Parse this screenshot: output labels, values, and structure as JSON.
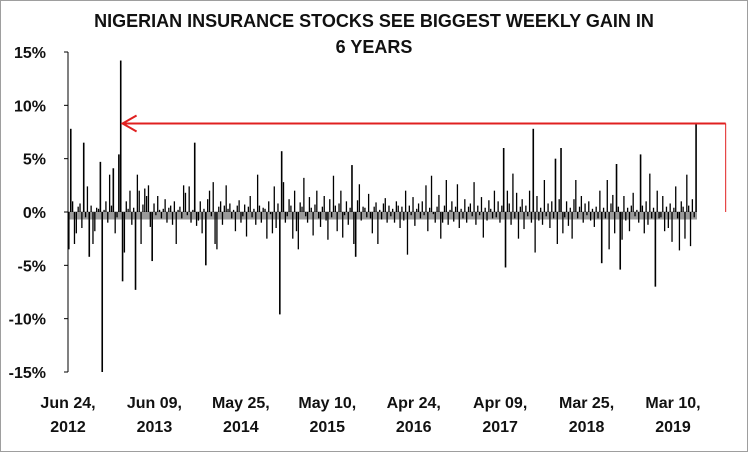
{
  "chart_data": {
    "type": "bar",
    "title_line1": "NIGERIAN INSURANCE STOCKS SEE BIGGEST WEEKLY GAIN IN",
    "title_line2": "6 YEARS",
    "xlabel": "",
    "ylabel": "",
    "ylim": [
      -15,
      15
    ],
    "y_ticks": [
      "15%",
      "10%",
      "5%",
      "0%",
      "-5%",
      "-10%",
      "-15%"
    ],
    "x_ticks": [
      {
        "line1": "Jun 24,",
        "line2": "2012"
      },
      {
        "line1": "Jun 09,",
        "line2": "2013"
      },
      {
        "line1": "May 25,",
        "line2": "2014"
      },
      {
        "line1": "May 10,",
        "line2": "2015"
      },
      {
        "line1": "Apr 24,",
        "line2": "2016"
      },
      {
        "line1": "Apr 09,",
        "line2": "2017"
      },
      {
        "line1": "Mar 25,",
        "line2": "2018"
      },
      {
        "line1": "Mar 10,",
        "line2": "2019"
      }
    ],
    "grid": false,
    "bar_color": "#000000",
    "baseline_band_color": "#9a9a9a",
    "arrow_color": "#e02020",
    "arrow": {
      "from_week": 355,
      "to_week": 29,
      "value": 8.3
    },
    "weekly_changes_pct": [
      -3.5,
      7.8,
      1.0,
      -3.0,
      -2.0,
      0.5,
      0.8,
      -1.5,
      6.5,
      -0.5,
      2.4,
      -4.2,
      0.6,
      -3.0,
      -1.8,
      0.4,
      0.3,
      4.7,
      -15.0,
      0.2,
      1.0,
      -1.0,
      3.5,
      0.6,
      4.1,
      -2.0,
      -0.5,
      5.4,
      14.2,
      -6.5,
      -3.8,
      1.0,
      0.3,
      2.0,
      -1.2,
      0.4,
      -7.3,
      3.5,
      2.0,
      -3.0,
      0.7,
      2.2,
      1.5,
      2.5,
      -1.4,
      -4.6,
      0.8,
      -0.3,
      1.5,
      0.2,
      -0.6,
      0.3,
      1.2,
      -1.0,
      0.4,
      0.6,
      -1.2,
      1.0,
      -3.0,
      0.2,
      0.5,
      -0.6,
      2.5,
      1.8,
      -0.3,
      2.4,
      -1.0,
      0.2,
      6.5,
      -1.3,
      -0.8,
      1.0,
      -2.0,
      0.3,
      -5.0,
      1.2,
      2.0,
      -0.4,
      2.8,
      -3.0,
      -3.5,
      0.5,
      1.0,
      -1.2,
      0.6,
      2.5,
      0.3,
      0.8,
      -0.6,
      0.2,
      -1.8,
      0.6,
      1.1,
      -1.0,
      -0.4,
      0.7,
      -2.3,
      0.5,
      1.5,
      -0.5,
      0.3,
      -1.2,
      3.5,
      0.6,
      -1.0,
      0.4,
      0.3,
      -2.5,
      1.0,
      -0.2,
      -2.0,
      2.4,
      -1.5,
      0.8,
      -9.6,
      5.7,
      2.8,
      -1.0,
      -0.4,
      1.2,
      0.6,
      -2.5,
      2.0,
      -1.8,
      -3.5,
      0.9,
      0.5,
      3.2,
      -0.4,
      -1.0,
      1.4,
      0.4,
      -2.2,
      0.7,
      2.0,
      -0.6,
      -1.4,
      0.5,
      1.5,
      -0.8,
      -2.6,
      1.2,
      -0.5,
      3.4,
      0.6,
      -1.8,
      0.8,
      2.0,
      -2.4,
      -0.3,
      1.0,
      -1.2,
      0.4,
      4.4,
      -3.0,
      -4.2,
      1.1,
      2.6,
      -0.8,
      0.5,
      0.4,
      -0.5,
      1.7,
      -0.6,
      -2.0,
      0.5,
      0.9,
      -3.0,
      0.2,
      -0.7,
      0.8,
      1.3,
      -1.0,
      0.6,
      -0.4,
      0.3,
      -1.0,
      1.0,
      0.6,
      -1.5,
      0.5,
      -0.8,
      2.0,
      -4.0,
      0.6,
      -0.3,
      1.4,
      -1.3,
      0.3,
      0.8,
      -0.6,
      1.0,
      -0.3,
      2.5,
      -1.8,
      0.4,
      3.4,
      -0.2,
      -1.0,
      0.5,
      1.6,
      -2.5,
      -1.0,
      0.6,
      3.0,
      -1.2,
      0.2,
      1.0,
      -0.9,
      0.5,
      2.6,
      -1.5,
      0.3,
      -0.6,
      1.2,
      -1.0,
      0.5,
      0.8,
      -0.4,
      2.8,
      -1.2,
      0.6,
      -0.3,
      1.4,
      -2.4,
      0.4,
      -0.8,
      1.1,
      0.3,
      -0.6,
      2.0,
      -0.5,
      1.0,
      -1.0,
      0.6,
      6.0,
      -5.2,
      2.0,
      0.8,
      -1.2,
      3.6,
      -0.6,
      1.8,
      -2.5,
      0.5,
      1.2,
      -1.6,
      0.6,
      -0.4,
      2.0,
      -1.0,
      7.8,
      -3.8,
      1.5,
      -0.8,
      0.4,
      -1.2,
      3.0,
      -0.4,
      0.8,
      -1.5,
      1.0,
      -0.6,
      5.0,
      -3.0,
      1.2,
      6.0,
      -2.0,
      -0.5,
      1.0,
      -1.3,
      0.4,
      -2.5,
      1.2,
      3.0,
      -0.6,
      0.5,
      1.5,
      -1.0,
      0.8,
      -0.3,
      1.0,
      -0.8,
      0.3,
      -1.4,
      0.5,
      -0.6,
      2.0,
      -4.8,
      0.4,
      -0.6,
      3.0,
      -3.5,
      0.8,
      1.6,
      -2.0,
      4.5,
      0.5,
      -5.4,
      -2.6,
      1.5,
      -0.8,
      0.4,
      -1.8,
      0.6,
      1.8,
      -0.4,
      0.2,
      -1.0,
      5.4,
      0.6,
      -2.0,
      1.0,
      -1.2,
      3.6,
      -0.6,
      0.4,
      -7.0,
      2.0,
      -0.6,
      -0.5,
      1.5,
      -1.8,
      0.5,
      -1.5,
      0.8,
      -2.8,
      0.4,
      2.4,
      -0.6,
      -3.6,
      1.0,
      0.5,
      -2.5,
      3.5,
      0.6,
      -3.2,
      1.2,
      -0.5,
      8.3
    ]
  }
}
